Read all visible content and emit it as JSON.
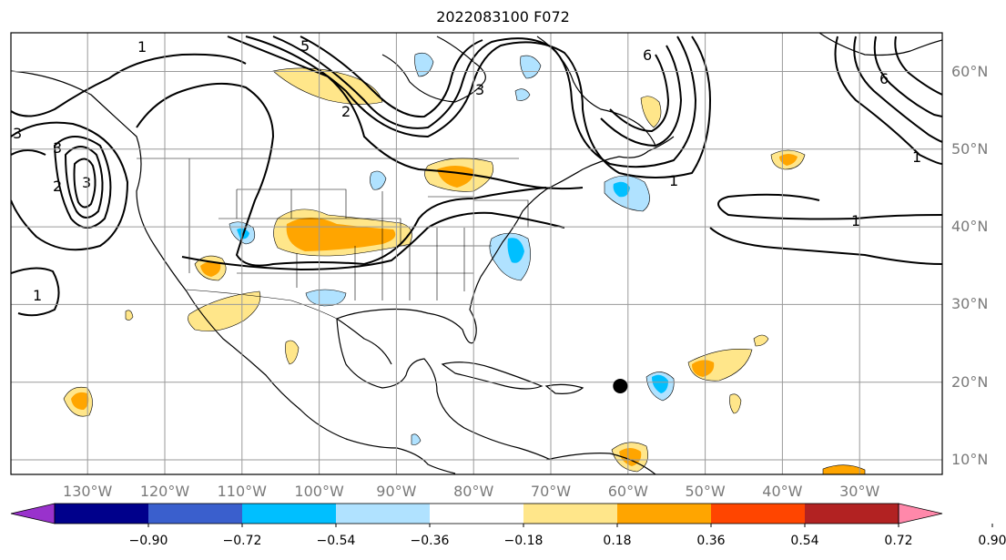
{
  "title": "2022083100 F072",
  "lat_labels": [
    {
      "text": "60°N",
      "lat": 60
    },
    {
      "text": "50°N",
      "lat": 50
    },
    {
      "text": "40°N",
      "lat": 40
    },
    {
      "text": "30°N",
      "lat": 30
    },
    {
      "text": "20°N",
      "lat": 20
    },
    {
      "text": "10°N",
      "lat": 10
    }
  ],
  "lon_labels": [
    {
      "text": "130°W",
      "lon": -130
    },
    {
      "text": "120°W",
      "lon": -120
    },
    {
      "text": "110°W",
      "lon": -110
    },
    {
      "text": "100°W",
      "lon": -100
    },
    {
      "text": "90°W",
      "lon": -90
    },
    {
      "text": "80°W",
      "lon": -80
    },
    {
      "text": "70°W",
      "lon": -70
    },
    {
      "text": "60°W",
      "lon": -60
    },
    {
      "text": "50°W",
      "lon": -50
    },
    {
      "text": "40°W",
      "lon": -40
    },
    {
      "text": "30°W",
      "lon": -30
    }
  ],
  "colorbar": {
    "ticks": [
      "−0.90",
      "−0.72",
      "−0.54",
      "−0.36",
      "−0.18",
      "0.18",
      "0.36",
      "0.54",
      "0.72",
      "0.90"
    ],
    "colors": [
      "#9932cc",
      "#00008b",
      "#3a5fcd",
      "#00bfff",
      "#b0e2ff",
      "#ffffff",
      "#ffe68a",
      "#ffa500",
      "#ff4500",
      "#b22222",
      "#ff88aa"
    ]
  },
  "contour_labels": [
    "1",
    "1",
    "1",
    "1",
    "1",
    "2",
    "2",
    "3",
    "3",
    "3",
    "3",
    "5",
    "6",
    "6"
  ],
  "marker": {
    "name": "storm-position",
    "lon": -61,
    "lat": 19.5
  }
}
